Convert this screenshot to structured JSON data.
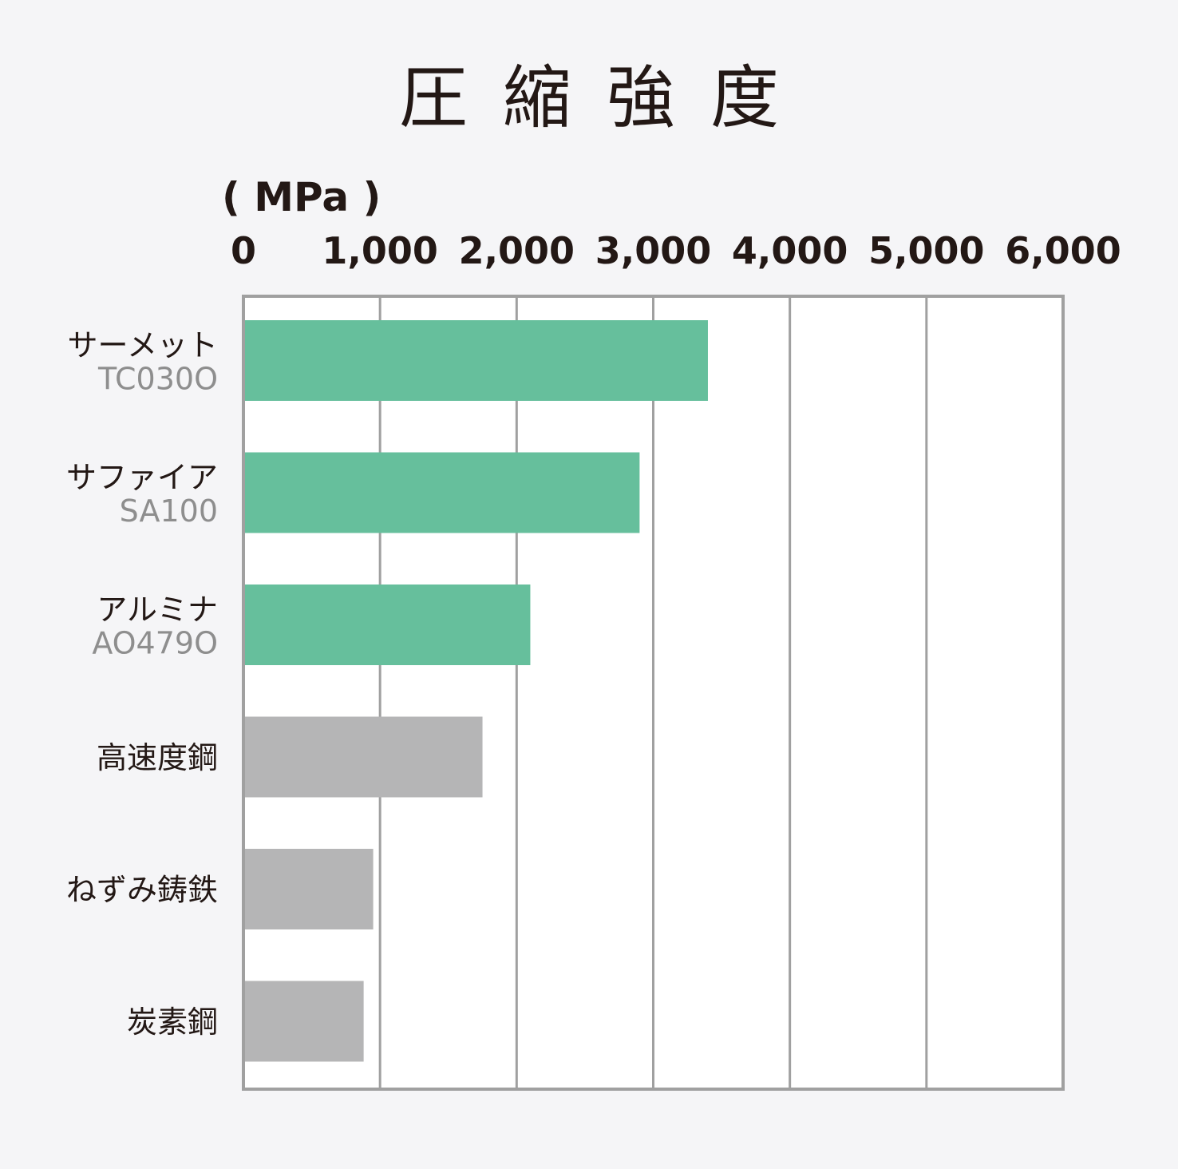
{
  "chart_data": {
    "type": "bar",
    "orientation": "horizontal",
    "title": "圧縮強度",
    "unit": "( MPa )",
    "xlim": [
      0,
      6000
    ],
    "ticks": [
      "0",
      "1,000",
      "2,000",
      "3,000",
      "4,000",
      "5,000",
      "6,000"
    ],
    "grid": true,
    "categories": [
      {
        "name": "サーメット",
        "code": "TC030O",
        "value": 3400,
        "color": "#66bf9c"
      },
      {
        "name": "サファイア",
        "code": "SA100",
        "value": 2900,
        "color": "#66bf9c"
      },
      {
        "name": "アルミナ",
        "code": "AO479O",
        "value": 2100,
        "color": "#66bf9c"
      },
      {
        "name": "高速度鋼",
        "code": "",
        "value": 1750,
        "color": "#b5b5b6"
      },
      {
        "name": "ねずみ鋳鉄",
        "code": "",
        "value": 950,
        "color": "#b5b5b6"
      },
      {
        "name": "炭素鋼",
        "code": "",
        "value": 880,
        "color": "#b5b5b6"
      }
    ]
  }
}
